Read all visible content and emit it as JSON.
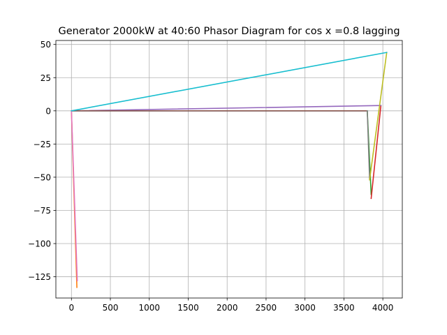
{
  "chart_data": {
    "type": "line",
    "title": "Generator 2000kW at 40:60 Phasor Diagram for cos x =0.8 lagging",
    "xlabel": "",
    "ylabel": "",
    "xlim": [
      -200,
      4250
    ],
    "ylim": [
      -141,
      53
    ],
    "xticks": [
      0,
      500,
      1000,
      1500,
      2000,
      2500,
      3000,
      3500,
      4000
    ],
    "yticks": [
      50,
      25,
      0,
      -25,
      -50,
      -75,
      -100,
      -125
    ],
    "ytick_labels": [
      "50",
      "25",
      "0",
      "−25",
      "−50",
      "−75",
      "−100",
      "−125"
    ],
    "grid": true,
    "series": [
      {
        "color": "#1f77b4",
        "points": [
          [
            0,
            0
          ],
          [
            3800,
            0
          ]
        ]
      },
      {
        "color": "#ff7f0e",
        "points": [
          [
            0,
            0
          ],
          [
            70,
            -133
          ]
        ]
      },
      {
        "color": "#2ca02c",
        "points": [
          [
            3800,
            0
          ],
          [
            3850,
            -63
          ]
        ]
      },
      {
        "color": "#d62728",
        "points": [
          [
            3850,
            -66
          ],
          [
            3975,
            4
          ]
        ]
      },
      {
        "color": "#9467bd",
        "points": [
          [
            0,
            0
          ],
          [
            3975,
            4
          ]
        ]
      },
      {
        "color": "#8c564b",
        "points": [
          [
            0,
            0
          ],
          [
            3800,
            0
          ]
        ]
      },
      {
        "color": "#e377c2",
        "points": [
          [
            0,
            0
          ],
          [
            75,
            -128
          ]
        ]
      },
      {
        "color": "#7f7f7f",
        "points": [
          [
            3800,
            0
          ],
          [
            3830,
            -52
          ]
        ]
      },
      {
        "color": "#bcbd22",
        "points": [
          [
            3830,
            -52
          ],
          [
            4050,
            44
          ]
        ]
      },
      {
        "color": "#17becf",
        "points": [
          [
            0,
            0
          ],
          [
            4050,
            44
          ]
        ]
      }
    ]
  }
}
